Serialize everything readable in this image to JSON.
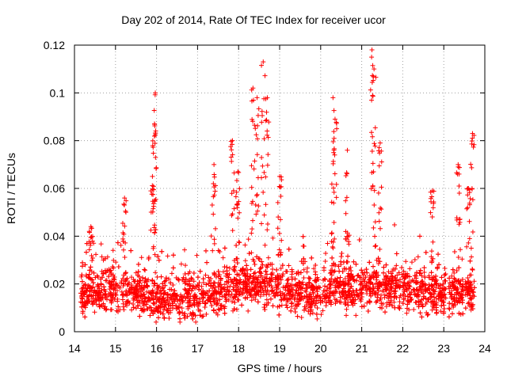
{
  "chart_data": {
    "type": "scatter",
    "title": "Day 202 of 2014, Rate Of TEC Index for receiver ucor",
    "xlabel": "GPS time / hours",
    "ylabel": "ROTI / TECUs",
    "xlim": [
      14,
      24
    ],
    "ylim": [
      0,
      0.12
    ],
    "xticks": [
      "14",
      "15",
      "16",
      "17",
      "18",
      "19",
      "20",
      "21",
      "22",
      "23",
      "24"
    ],
    "yticks": [
      "0",
      "0.02",
      "0.04",
      "0.06",
      "0.08",
      "0.1",
      "0.12"
    ],
    "grid": true,
    "marker": "plus",
    "color": "#ff0000",
    "data_range": [
      14.15,
      23.75
    ],
    "baseline": [
      [
        14.15,
        0.016
      ],
      [
        14.5,
        0.017
      ],
      [
        15.0,
        0.017
      ],
      [
        15.5,
        0.016
      ],
      [
        16.0,
        0.014
      ],
      [
        16.5,
        0.013
      ],
      [
        17.0,
        0.014
      ],
      [
        17.5,
        0.017
      ],
      [
        18.0,
        0.019
      ],
      [
        18.5,
        0.02
      ],
      [
        19.0,
        0.018
      ],
      [
        19.5,
        0.016
      ],
      [
        20.0,
        0.017
      ],
      [
        20.5,
        0.019
      ],
      [
        21.0,
        0.019
      ],
      [
        21.5,
        0.019
      ],
      [
        22.0,
        0.018
      ],
      [
        22.5,
        0.017
      ],
      [
        23.0,
        0.016
      ],
      [
        23.75,
        0.016
      ]
    ],
    "peaks": [
      [
        14.4,
        0.044
      ],
      [
        15.22,
        0.056
      ],
      [
        15.9,
        0.065
      ],
      [
        15.97,
        0.1
      ],
      [
        15.95,
        0.087
      ],
      [
        17.4,
        0.07
      ],
      [
        17.85,
        0.08
      ],
      [
        17.98,
        0.067
      ],
      [
        18.35,
        0.102
      ],
      [
        18.45,
        0.098
      ],
      [
        18.6,
        0.113
      ],
      [
        18.7,
        0.098
      ],
      [
        19.0,
        0.065
      ],
      [
        20.3,
        0.098
      ],
      [
        20.35,
        0.089
      ],
      [
        20.65,
        0.076
      ],
      [
        21.25,
        0.118
      ],
      [
        21.3,
        0.11
      ],
      [
        21.45,
        0.079
      ],
      [
        22.72,
        0.059
      ],
      [
        23.35,
        0.07
      ],
      [
        23.7,
        0.083
      ],
      [
        23.6,
        0.06
      ]
    ],
    "points": []
  }
}
